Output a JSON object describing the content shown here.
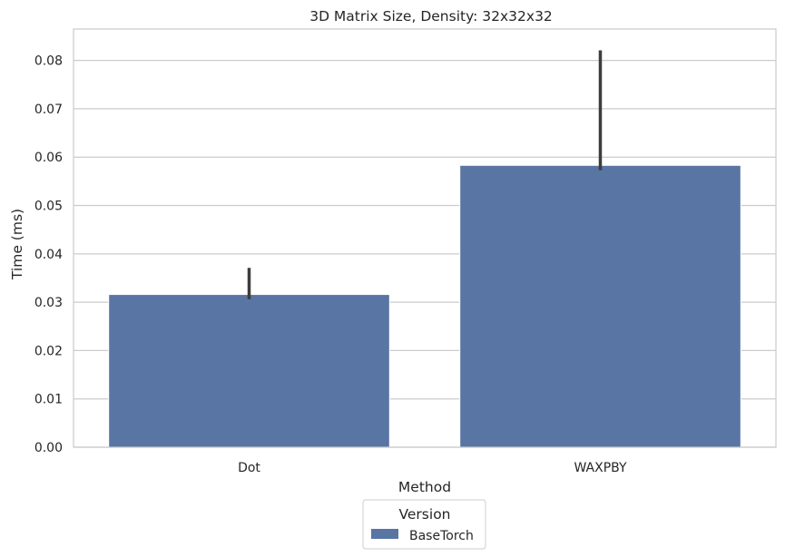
{
  "chart_data": {
    "type": "bar",
    "title": "3D Matrix Size, Density: 32x32x32",
    "xlabel": "Method",
    "ylabel": "Time (ms)",
    "categories": [
      "Dot",
      "WAXPBY"
    ],
    "series": [
      {
        "name": "BaseTorch",
        "color": "#5975a4",
        "values": [
          0.0316,
          0.0583
        ],
        "error_low": [
          0.0306,
          0.0573
        ],
        "error_high": [
          0.0371,
          0.0821
        ]
      }
    ],
    "ylim": [
      0,
      0.0865
    ],
    "yticks": [
      "0.00",
      "0.01",
      "0.02",
      "0.03",
      "0.04",
      "0.05",
      "0.06",
      "0.07",
      "0.08"
    ],
    "grid": "y",
    "legend": {
      "title": "Version",
      "placement": "bottom-center"
    }
  }
}
